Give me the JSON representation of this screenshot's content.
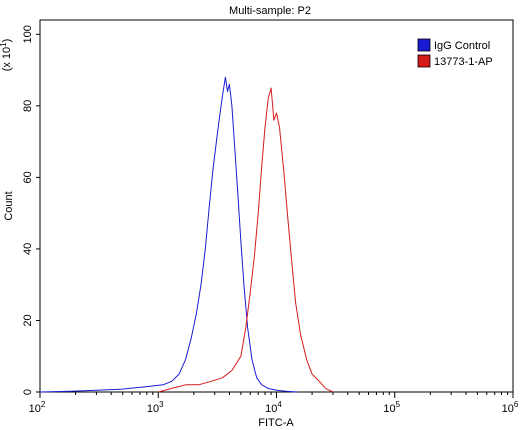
{
  "chart_data": {
    "type": "line",
    "title": "Multi-sample: P2",
    "xlabel": "FITC-A",
    "ylabel": "Count",
    "y_multiplier_label": "(x 10",
    "y_multiplier_exp": "1",
    "y_multiplier_close": ")",
    "x_scale": "log",
    "xlim": [
      100,
      1000000
    ],
    "ylim": [
      0,
      104
    ],
    "x_ticks": [
      {
        "value": 100,
        "base": "10",
        "exp": "2"
      },
      {
        "value": 1000,
        "base": "10",
        "exp": "3"
      },
      {
        "value": 10000,
        "base": "10",
        "exp": "4"
      },
      {
        "value": 100000,
        "base": "10",
        "exp": "5"
      },
      {
        "value": 1000000,
        "base": "10",
        "exp": "6"
      }
    ],
    "y_ticks": [
      0,
      20,
      40,
      60,
      80,
      100
    ],
    "legend_position": "top-right",
    "series": [
      {
        "name": "IgG Control",
        "color": "#1a1ad6",
        "points": [
          [
            100,
            0
          ],
          [
            180,
            0.2
          ],
          [
            300,
            0.5
          ],
          [
            500,
            0.8
          ],
          [
            800,
            1.5
          ],
          [
            1100,
            2
          ],
          [
            1300,
            3
          ],
          [
            1500,
            5
          ],
          [
            1700,
            9
          ],
          [
            1900,
            15
          ],
          [
            2100,
            22
          ],
          [
            2300,
            30
          ],
          [
            2500,
            40
          ],
          [
            2700,
            52
          ],
          [
            2900,
            62
          ],
          [
            3100,
            70
          ],
          [
            3300,
            77
          ],
          [
            3500,
            83
          ],
          [
            3700,
            88
          ],
          [
            3850,
            84
          ],
          [
            4000,
            86
          ],
          [
            4200,
            80
          ],
          [
            4400,
            70
          ],
          [
            4700,
            56
          ],
          [
            5000,
            42
          ],
          [
            5300,
            30
          ],
          [
            5700,
            18
          ],
          [
            6200,
            9
          ],
          [
            6800,
            4
          ],
          [
            7500,
            2
          ],
          [
            8500,
            1
          ],
          [
            10000,
            0.5
          ],
          [
            12000,
            0.2
          ],
          [
            15000,
            0
          ]
        ]
      },
      {
        "name": "13773-1-AP",
        "color": "#d61a1a",
        "points": [
          [
            1000,
            0
          ],
          [
            1300,
            1
          ],
          [
            1700,
            2
          ],
          [
            2200,
            2
          ],
          [
            2800,
            3
          ],
          [
            3500,
            4
          ],
          [
            4200,
            6
          ],
          [
            5000,
            10
          ],
          [
            5500,
            18
          ],
          [
            6000,
            28
          ],
          [
            6500,
            38
          ],
          [
            7000,
            50
          ],
          [
            7500,
            63
          ],
          [
            8000,
            74
          ],
          [
            8500,
            82
          ],
          [
            9000,
            85
          ],
          [
            9500,
            76
          ],
          [
            10000,
            78
          ],
          [
            10600,
            74
          ],
          [
            11500,
            62
          ],
          [
            12500,
            48
          ],
          [
            13500,
            36
          ],
          [
            14500,
            25
          ],
          [
            16000,
            16
          ],
          [
            18000,
            9
          ],
          [
            20000,
            5
          ],
          [
            23000,
            3
          ],
          [
            26000,
            1
          ],
          [
            30000,
            0
          ]
        ]
      }
    ]
  }
}
